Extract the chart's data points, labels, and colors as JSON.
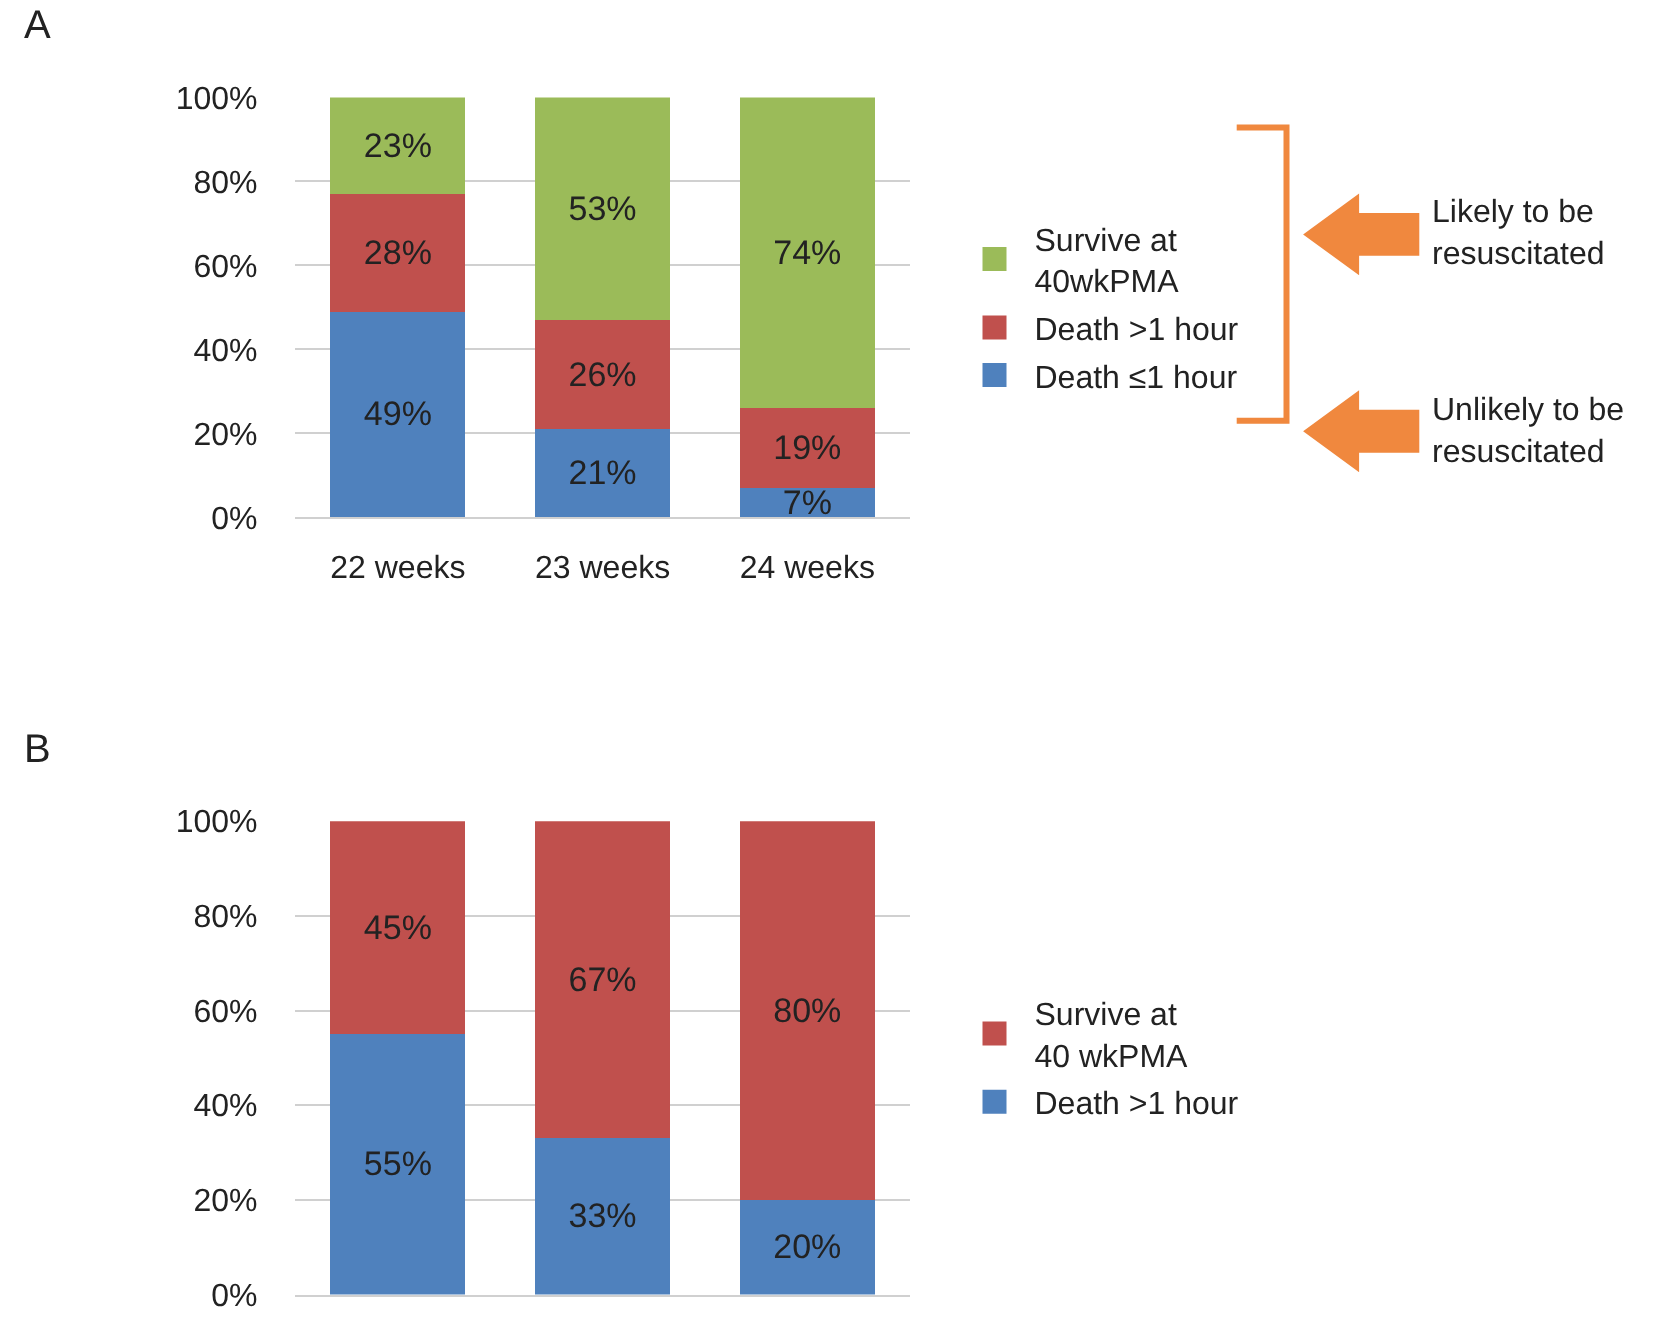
{
  "chart_data": [
    {
      "type": "bar",
      "title": "A",
      "stacked": true,
      "categories": [
        "22 weeks",
        "23 weeks",
        "24 weeks"
      ],
      "series": [
        {
          "name": "Death ≤1 hour",
          "color": "#4f81bd",
          "values": [
            49,
            21,
            7
          ],
          "value_labels": [
            "49%",
            "21%",
            "7%"
          ]
        },
        {
          "name": "Death >1 hour",
          "color": "#c0504d",
          "values": [
            28,
            26,
            19
          ],
          "value_labels": [
            "28%",
            "26%",
            "19%"
          ]
        },
        {
          "name": "Survive at\n40wkPMA",
          "color": "#9bbb59",
          "values": [
            23,
            53,
            74
          ],
          "value_labels": [
            "23%",
            "53%",
            "74%"
          ]
        }
      ],
      "ylim": [
        0,
        100
      ],
      "yticks": [
        {
          "value": 0,
          "label": "0%"
        },
        {
          "value": 20,
          "label": "20%"
        },
        {
          "value": 40,
          "label": "40%"
        },
        {
          "value": 60,
          "label": "60%"
        },
        {
          "value": 80,
          "label": "80%"
        },
        {
          "value": 100,
          "label": "100%"
        }
      ],
      "grid": "y",
      "legend": "right",
      "annotations": [
        "Likely to be\nresuscitated",
        "Unlikely to be\nresuscitated"
      ]
    },
    {
      "type": "bar",
      "title": "B",
      "stacked": true,
      "categories": [
        null,
        null,
        null
      ],
      "series": [
        {
          "name": "Death >1 hour",
          "color": "#4f81bd",
          "values": [
            55,
            33,
            20
          ],
          "value_labels": [
            "55%",
            "33%",
            "20%"
          ]
        },
        {
          "name": "Survive at\n40 wkPMA",
          "color": "#c0504d",
          "values": [
            45,
            67,
            80
          ],
          "value_labels": [
            "45%",
            "67%",
            "80%"
          ]
        }
      ],
      "ylim": [
        0,
        100
      ],
      "yticks": [
        {
          "value": 0,
          "label": "0%"
        },
        {
          "value": 20,
          "label": "20%"
        },
        {
          "value": 40,
          "label": "40%"
        },
        {
          "value": 60,
          "label": "60%"
        },
        {
          "value": 80,
          "label": "80%"
        },
        {
          "value": 100,
          "label": "100%"
        }
      ],
      "grid": "y",
      "legend": "right",
      "tick_labels": "y"
    }
  ]
}
